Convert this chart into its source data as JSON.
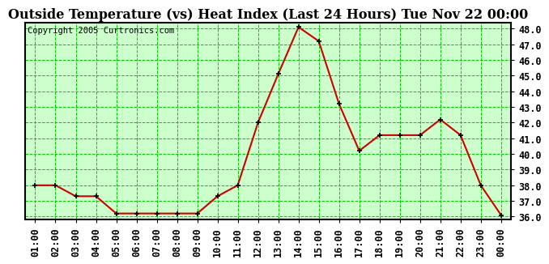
{
  "title": "Outside Temperature (vs) Heat Index (Last 24 Hours) Tue Nov 22 00:00",
  "copyright": "Copyright 2005 Curtronics.com",
  "x_labels": [
    "01:00",
    "02:00",
    "03:00",
    "04:00",
    "05:00",
    "06:00",
    "07:00",
    "08:00",
    "09:00",
    "10:00",
    "11:00",
    "12:00",
    "13:00",
    "14:00",
    "15:00",
    "16:00",
    "17:00",
    "18:00",
    "19:00",
    "20:00",
    "21:00",
    "22:00",
    "23:00",
    "00:00"
  ],
  "y_values": [
    38.0,
    38.0,
    37.3,
    37.3,
    36.2,
    36.2,
    36.2,
    36.2,
    36.2,
    37.3,
    38.0,
    42.0,
    45.1,
    48.1,
    47.2,
    43.2,
    40.2,
    41.2,
    41.2,
    41.2,
    42.2,
    41.2,
    38.0,
    36.1
  ],
  "ylim": [
    35.8,
    48.4
  ],
  "yticks": [
    36.0,
    37.0,
    38.0,
    39.0,
    40.0,
    41.0,
    42.0,
    43.0,
    44.0,
    45.0,
    46.0,
    47.0,
    48.0
  ],
  "line_color": "#cc0000",
  "marker_color": "#000000",
  "grid_color": "#00cc00",
  "background_color": "#ccffcc",
  "fig_background": "#ffffff",
  "title_color": "#000000",
  "copyright_color": "#000000",
  "border_color": "#000000",
  "title_fontsize": 11.5,
  "copyright_fontsize": 7.5,
  "tick_fontsize": 8.5
}
